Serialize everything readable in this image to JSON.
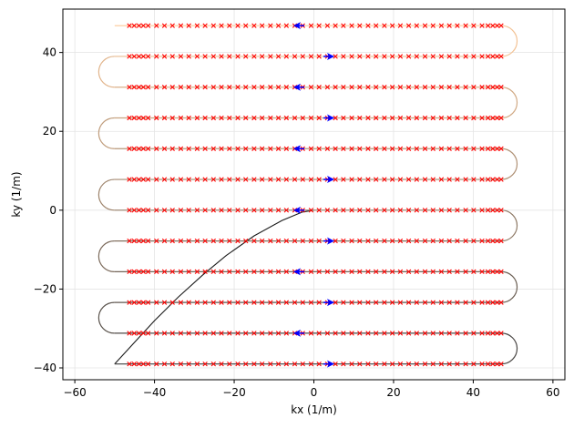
{
  "chart_data": {
    "type": "line",
    "title": "",
    "xlabel": "kx (1/m)",
    "ylabel": "ky (1/m)",
    "xlim": [
      -63,
      63
    ],
    "ylim": [
      -43,
      51
    ],
    "xticks": [
      -60,
      -40,
      -20,
      0,
      20,
      40,
      60
    ],
    "yticks": [
      -40,
      -20,
      0,
      20,
      40
    ],
    "grid": true,
    "legend": "none",
    "prephase": {
      "points": [
        [
          0,
          0
        ],
        [
          -3,
          -0.5
        ],
        [
          -8,
          -2.6
        ],
        [
          -15,
          -6.5
        ],
        [
          -22,
          -11.5
        ],
        [
          -28,
          -16.5
        ],
        [
          -34,
          -22
        ],
        [
          -40,
          -28
        ],
        [
          -45,
          -33.5
        ],
        [
          -50,
          -39
        ]
      ],
      "color": "#1a1a1a"
    },
    "readout": {
      "rows_ky": [
        -39,
        -31.2,
        -23.4,
        -15.6,
        -7.8,
        0,
        7.8,
        15.6,
        23.4,
        31.2,
        39,
        46.8
      ],
      "start": [
        -50,
        -39
      ],
      "line_x_min": -50,
      "line_x_max": 47,
      "turn_radius": 3.9,
      "color_start": "#404040",
      "color_end": "#fbc898"
    },
    "samples": {
      "marker": "x",
      "color": "#ff0000",
      "kx": [
        -46.3,
        -45.1,
        -43.9,
        -42.8,
        -41.6,
        -39.5,
        -37.5,
        -35.5,
        -33.4,
        -31.4,
        -29.3,
        -27.3,
        -25.2,
        -23.2,
        -21.2,
        -19.1,
        -17.1,
        -15.0,
        -13.0,
        -10.9,
        -8.9,
        -6.9,
        -4.8,
        -2.8,
        -0.7,
        1.3,
        3.4,
        5.4,
        7.4,
        9.5,
        11.5,
        13.6,
        15.6,
        17.7,
        19.7,
        21.7,
        23.8,
        25.8,
        27.9,
        29.9,
        32.0,
        34.0,
        36.0,
        38.1,
        40.1,
        42.2,
        43.7,
        44.9,
        46.0,
        47.0
      ]
    },
    "direction_arrows": {
      "color": "#0000ff",
      "positions": [
        {
          "ky": -39,
          "kx": 4,
          "dir": "right"
        },
        {
          "ky": -31.2,
          "kx": -4,
          "dir": "left"
        },
        {
          "ky": -23.4,
          "kx": 4,
          "dir": "right"
        },
        {
          "ky": -15.6,
          "kx": -4,
          "dir": "left"
        },
        {
          "ky": -7.8,
          "kx": 4,
          "dir": "right"
        },
        {
          "ky": 0,
          "kx": -4,
          "dir": "left"
        },
        {
          "ky": 7.8,
          "kx": 4,
          "dir": "right"
        },
        {
          "ky": 15.6,
          "kx": -4,
          "dir": "left"
        },
        {
          "ky": 23.4,
          "kx": 4,
          "dir": "right"
        },
        {
          "ky": 31.2,
          "kx": -4,
          "dir": "left"
        },
        {
          "ky": 39,
          "kx": 4,
          "dir": "right"
        },
        {
          "ky": 46.8,
          "kx": -4,
          "dir": "left"
        }
      ]
    }
  }
}
